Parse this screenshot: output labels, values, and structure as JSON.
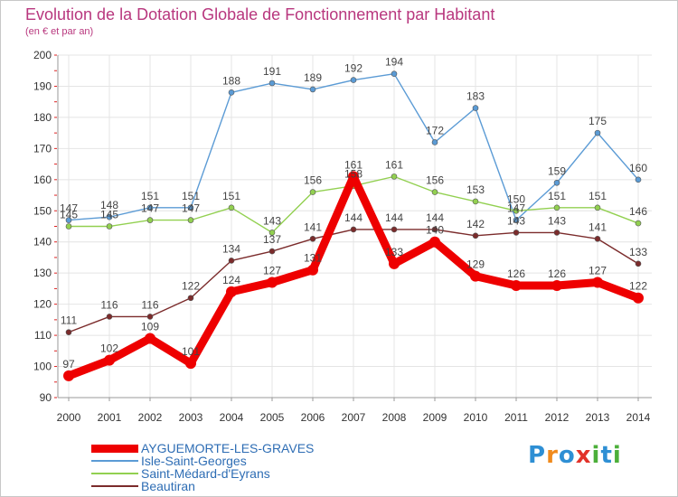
{
  "brand": {
    "text": "Proxiti",
    "colors": [
      "#2e8fd4",
      "#f08a1c",
      "#2e8fd4",
      "#e2322a",
      "#4caf3a",
      "#2e8fd4",
      "#4caf3a"
    ]
  },
  "chart_data": {
    "type": "line",
    "title": "Evolution de la Dotation Globale de Fonctionnement par Habitant",
    "subtitle": "(en € et par an)",
    "xlabel": "",
    "ylabel": "",
    "categories": [
      "2000",
      "2001",
      "2002",
      "2003",
      "2004",
      "2005",
      "2006",
      "2007",
      "2008",
      "2009",
      "2010",
      "2011",
      "2012",
      "2013",
      "2014"
    ],
    "ylim": [
      90,
      200
    ],
    "yticks": [
      90,
      100,
      110,
      120,
      130,
      140,
      150,
      160,
      170,
      180,
      190,
      200
    ],
    "grid": true,
    "legend_position": "bottom-left",
    "series": [
      {
        "key": "ayg",
        "name": "AYGUEMORTE-LES-GRAVES",
        "color": "#ee0000",
        "values": [
          97,
          102,
          109,
          101,
          124,
          127,
          131,
          161,
          133,
          140,
          129,
          126,
          126,
          127,
          122
        ]
      },
      {
        "key": "isle",
        "name": "Isle-Saint-Georges",
        "color": "#5b9bd5",
        "values": [
          147,
          148,
          151,
          151,
          188,
          191,
          189,
          192,
          194,
          172,
          183,
          147,
          159,
          175,
          160
        ]
      },
      {
        "key": "smed",
        "name": "Saint-Médard-d'Eyrans",
        "color": "#92d050",
        "values": [
          145,
          145,
          147,
          147,
          151,
          143,
          156,
          158,
          161,
          156,
          153,
          150,
          151,
          151,
          146
        ]
      },
      {
        "key": "beau",
        "name": "Beautiran",
        "color": "#7b2b2b",
        "values": [
          111,
          116,
          116,
          122,
          134,
          137,
          141,
          144,
          144,
          144,
          142,
          143,
          143,
          141,
          133
        ]
      }
    ]
  }
}
